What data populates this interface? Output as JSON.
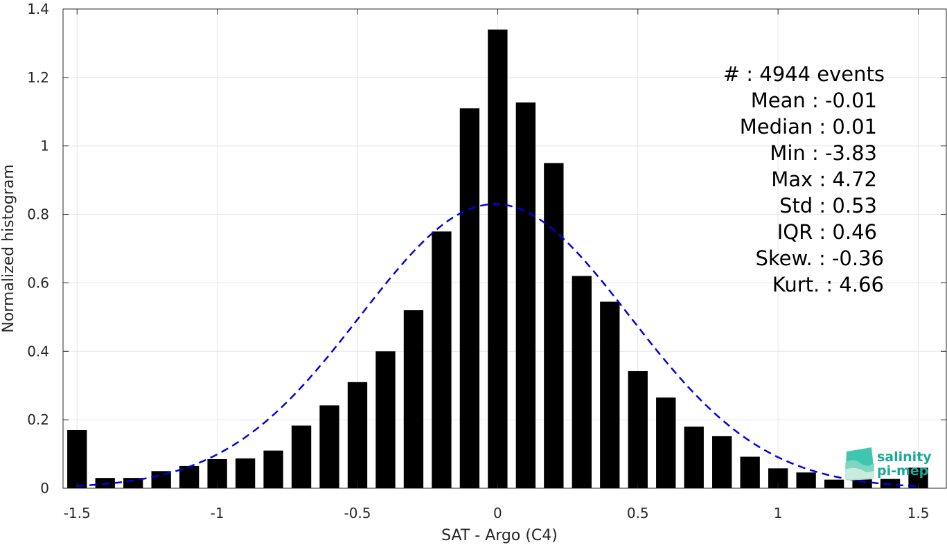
{
  "chart_data": {
    "type": "bar",
    "xlabel": "SAT - Argo (C4)",
    "ylabel": "Normalized histogram",
    "xlim": [
      -1.55,
      1.6
    ],
    "ylim": [
      0,
      1.4
    ],
    "xticks": [
      -1.5,
      -1,
      -0.5,
      0,
      0.5,
      1,
      1.5
    ],
    "xtick_labels": [
      "-1.5",
      "-1",
      "-0.5",
      "0",
      "0.5",
      "1",
      "1.5"
    ],
    "yticks": [
      0,
      0.2,
      0.4,
      0.6,
      0.8,
      1,
      1.2,
      1.4
    ],
    "ytick_labels": [
      "0",
      "0.2",
      "0.4",
      "0.6",
      "0.8",
      "1",
      "1.2",
      "1.4"
    ],
    "grid": true,
    "bar_width": 0.07,
    "bars": {
      "x": [
        -1.5,
        -1.4,
        -1.3,
        -1.2,
        -1.1,
        -1.0,
        -0.9,
        -0.8,
        -0.7,
        -0.6,
        -0.5,
        -0.4,
        -0.3,
        -0.2,
        -0.1,
        0.0,
        0.1,
        0.2,
        0.3,
        0.4,
        0.5,
        0.6,
        0.7,
        0.8,
        0.9,
        1.0,
        1.1,
        1.2,
        1.3,
        1.4,
        1.5
      ],
      "values": [
        0.17,
        0.03,
        0.03,
        0.05,
        0.065,
        0.085,
        0.087,
        0.11,
        0.183,
        0.242,
        0.31,
        0.4,
        0.52,
        0.75,
        1.11,
        1.34,
        1.127,
        0.95,
        0.62,
        0.545,
        0.342,
        0.265,
        0.18,
        0.152,
        0.092,
        0.058,
        0.046,
        0.025,
        0.03,
        0.027,
        0.06
      ],
      "color": "#000000"
    },
    "fit_curve": {
      "kind": "normal",
      "mean": -0.01,
      "std": 0.48,
      "peak": 0.83,
      "x_range": [
        -1.5,
        1.5
      ],
      "color": "#0000e6",
      "style": "dashed"
    },
    "stats_lines": [
      "#  : 4944 events",
      "Mean : -0.01",
      "Median : 0.01",
      "Min : -3.83",
      "Max : 4.72",
      "Std : 0.53",
      "IQR : 0.46",
      "Skew. : -0.36",
      "Kurt. : 4.66"
    ]
  },
  "logo": {
    "line1": "salinity",
    "line2": "pi-mep",
    "color": "#1aa89a"
  }
}
